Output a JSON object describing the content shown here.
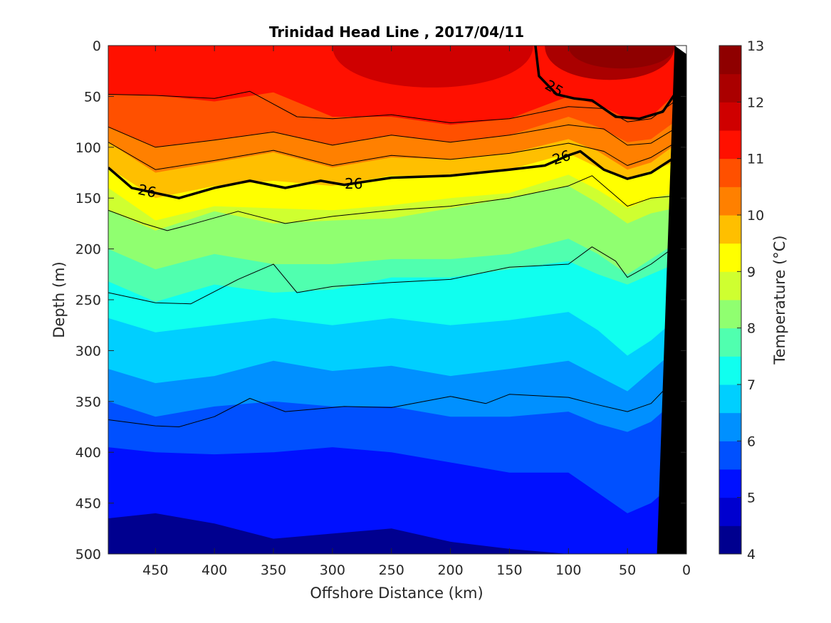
{
  "chart_data": {
    "type": "heatmap",
    "title": "Trinidad Head Line , 2017/04/11",
    "xlabel": "Offshore Distance (km)",
    "ylabel": "Depth (m)",
    "colorbar_label": "Temperature (°C)",
    "x_reversed": true,
    "xlim": [
      490,
      0
    ],
    "ylim": [
      0,
      500
    ],
    "y_reversed": true,
    "x_ticks": [
      450,
      400,
      350,
      300,
      250,
      200,
      150,
      100,
      50,
      0
    ],
    "y_ticks": [
      0,
      50,
      100,
      150,
      200,
      250,
      300,
      350,
      400,
      450,
      500
    ],
    "colorbar": {
      "min": 4,
      "max": 13,
      "step": 0.5,
      "ticks": [
        4,
        5,
        6,
        7,
        8,
        9,
        10,
        11,
        12,
        13
      ],
      "colors": [
        "#00008F",
        "#0000CF",
        "#0010FF",
        "#0050FF",
        "#0090FF",
        "#00CFFF",
        "#10FFEF",
        "#50FFAF",
        "#90FF70",
        "#CFFF30",
        "#FFFF00",
        "#FFBF00",
        "#FF8000",
        "#FF5000",
        "#FF1000",
        "#CF0000",
        "#AA0000",
        "#8F0000"
      ]
    },
    "isotherm_depths": {
      "x": [
        490,
        450,
        400,
        350,
        300,
        250,
        200,
        150,
        100,
        75,
        50,
        30,
        10
      ],
      "levels": [
        {
          "t": 10.5,
          "d": [
            48,
            49,
            55,
            46,
            70,
            70,
            78,
            72,
            50,
            58,
            72,
            70,
            48
          ]
        },
        {
          "t": 10.0,
          "d": [
            80,
            100,
            93,
            85,
            98,
            88,
            95,
            88,
            70,
            80,
            95,
            92,
            75
          ]
        },
        {
          "t": 9.5,
          "d": [
            95,
            125,
            115,
            105,
            120,
            110,
            112,
            106,
            92,
            104,
            122,
            115,
            98
          ]
        },
        {
          "t": 9.0,
          "d": [
            120,
            150,
            138,
            133,
            138,
            128,
            128,
            122,
            106,
            120,
            131,
            123,
            115
          ]
        },
        {
          "t": 8.5,
          "d": [
            140,
            172,
            158,
            160,
            162,
            157,
            150,
            145,
            127,
            142,
            160,
            150,
            145
          ]
        },
        {
          "t": 8.0,
          "d": [
            162,
            182,
            163,
            175,
            172,
            170,
            160,
            150,
            138,
            155,
            175,
            165,
            160
          ]
        },
        {
          "t": 7.5,
          "d": [
            200,
            220,
            205,
            215,
            215,
            210,
            210,
            205,
            190,
            205,
            225,
            210,
            195
          ]
        },
        {
          "t": 7.0,
          "d": [
            232,
            252,
            235,
            243,
            240,
            228,
            228,
            220,
            212,
            225,
            235,
            225,
            215
          ]
        },
        {
          "t": 6.5,
          "d": [
            268,
            282,
            275,
            268,
            275,
            268,
            275,
            270,
            262,
            280,
            305,
            290,
            270
          ]
        },
        {
          "t": 6.0,
          "d": [
            318,
            332,
            325,
            310,
            320,
            315,
            325,
            318,
            310,
            325,
            340,
            320,
            300
          ]
        },
        {
          "t": 5.5,
          "d": [
            350,
            365,
            355,
            350,
            355,
            355,
            365,
            365,
            360,
            372,
            380,
            370,
            350
          ]
        },
        {
          "t": 5.0,
          "d": [
            395,
            400,
            402,
            400,
            395,
            400,
            410,
            420,
            420,
            440,
            460,
            450,
            430
          ]
        },
        {
          "t": 4.5,
          "d": [
            465,
            460,
            470,
            485,
            480,
            475,
            488,
            495,
            500,
            500,
            500,
            500,
            500
          ]
        }
      ]
    },
    "surface_patches": [
      {
        "t": 11.0,
        "x_range": [
          300,
          130
        ],
        "d": 55
      },
      {
        "t": 11.5,
        "x_range": [
          120,
          10
        ],
        "d": 45
      },
      {
        "t": 12.0,
        "x_range": [
          100,
          10
        ],
        "d": 30
      }
    ],
    "contour_lines": [
      {
        "label": "26",
        "bold": true,
        "x": [
          490,
          470,
          450,
          430,
          400,
          370,
          340,
          310,
          290,
          250,
          200,
          150,
          120,
          100,
          90,
          70,
          50,
          30,
          10
        ],
        "d": [
          120,
          140,
          145,
          150,
          140,
          133,
          140,
          133,
          137,
          130,
          128,
          122,
          118,
          108,
          104,
          122,
          131,
          125,
          110
        ]
      },
      {
        "label": "25",
        "bold": true,
        "x": [
          128,
          125,
          110,
          95,
          80,
          60,
          40,
          20,
          10
        ],
        "d": [
          0,
          30,
          48,
          52,
          54,
          70,
          72,
          65,
          48
        ]
      },
      {
        "label": "",
        "bold": false,
        "x": [
          490,
          450,
          400,
          370,
          330,
          300,
          250,
          200,
          150,
          100,
          70,
          50,
          30,
          10
        ],
        "d": [
          48,
          49,
          52,
          45,
          70,
          72,
          68,
          76,
          72,
          60,
          62,
          75,
          72,
          55
        ]
      },
      {
        "label": "",
        "bold": false,
        "x": [
          490,
          450,
          400,
          350,
          300,
          250,
          200,
          150,
          100,
          70,
          50,
          30,
          10
        ],
        "d": [
          80,
          100,
          93,
          85,
          98,
          88,
          95,
          88,
          78,
          82,
          98,
          96,
          82
        ]
      },
      {
        "label": "",
        "bold": false,
        "x": [
          490,
          450,
          400,
          350,
          300,
          250,
          200,
          150,
          100,
          70,
          50,
          30,
          10
        ],
        "d": [
          95,
          122,
          113,
          103,
          118,
          108,
          112,
          106,
          96,
          104,
          118,
          110,
          96
        ]
      },
      {
        "label": "",
        "bold": false,
        "x": [
          490,
          460,
          440,
          420,
          380,
          340,
          300,
          250,
          200,
          150,
          100,
          80,
          60,
          50,
          30,
          10
        ],
        "d": [
          162,
          175,
          182,
          176,
          163,
          175,
          168,
          162,
          158,
          150,
          138,
          128,
          148,
          158,
          150,
          148
        ]
      },
      {
        "label": "",
        "bold": false,
        "x": [
          490,
          450,
          420,
          380,
          350,
          330,
          300,
          250,
          200,
          150,
          100,
          80,
          60,
          50,
          30,
          10
        ],
        "d": [
          243,
          253,
          254,
          230,
          215,
          243,
          237,
          233,
          230,
          218,
          215,
          198,
          212,
          228,
          215,
          198
        ]
      },
      {
        "label": "",
        "bold": false,
        "x": [
          490,
          450,
          430,
          400,
          370,
          340,
          320,
          290,
          250,
          200,
          170,
          150,
          100,
          80,
          50,
          30,
          10
        ],
        "d": [
          368,
          374,
          375,
          365,
          347,
          360,
          358,
          355,
          356,
          345,
          352,
          343,
          346,
          352,
          360,
          352,
          328
        ]
      }
    ],
    "inline_labels": [
      {
        "text": "26",
        "x": 457,
        "d": 143,
        "angle": 12
      },
      {
        "text": "26",
        "x": 282,
        "d": 136,
        "angle": 0
      },
      {
        "text": "26",
        "x": 106,
        "d": 110,
        "angle": -18
      },
      {
        "text": "25",
        "x": 112,
        "d": 42,
        "angle": 30
      }
    ],
    "bathymetry": {
      "x": [
        10,
        25,
        0,
        0
      ],
      "d": [
        0,
        500,
        500,
        0
      ]
    }
  }
}
